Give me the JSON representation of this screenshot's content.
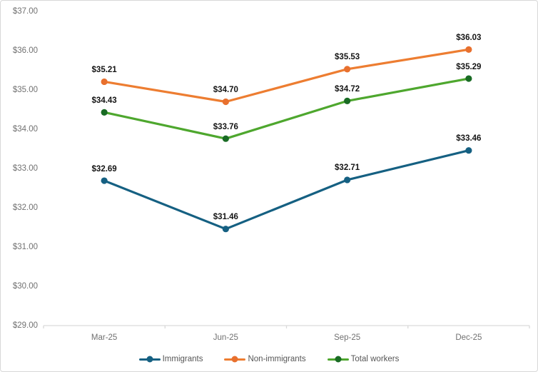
{
  "chart_data": {
    "type": "line",
    "title": "",
    "categories": [
      "Mar-25",
      "Jun-25",
      "Sep-25",
      "Dec-25"
    ],
    "series": [
      {
        "name": "Immigrants",
        "line_color": "#156082",
        "marker_color": "#156082",
        "values": [
          32.69,
          31.46,
          32.71,
          33.46
        ]
      },
      {
        "name": "Non-immigrants",
        "line_color": "#ED7D31",
        "marker_color": "#E8702E",
        "values": [
          35.21,
          34.7,
          35.53,
          36.03
        ]
      },
      {
        "name": "Total workers",
        "line_color": "#4EA72E",
        "marker_color": "#196B24",
        "values": [
          34.43,
          33.76,
          34.72,
          35.29
        ]
      }
    ],
    "xlabel": "",
    "ylabel": "",
    "y_axis": {
      "min": 29,
      "max": 37,
      "step": 1,
      "prefix": "$",
      "tick_labels": [
        "$37.00",
        "$36.00",
        "$35.00",
        "$34.00",
        "$33.00",
        "$32.00",
        "$31.00",
        "$30.00",
        "$29.00"
      ]
    },
    "grid": false,
    "data_labels": true,
    "legend_position": "bottom",
    "axis": {
      "line_color": "#D9D9D9",
      "text_color": "#717171",
      "data_label_color": "#141414",
      "legend_text_color": "#565656"
    }
  }
}
